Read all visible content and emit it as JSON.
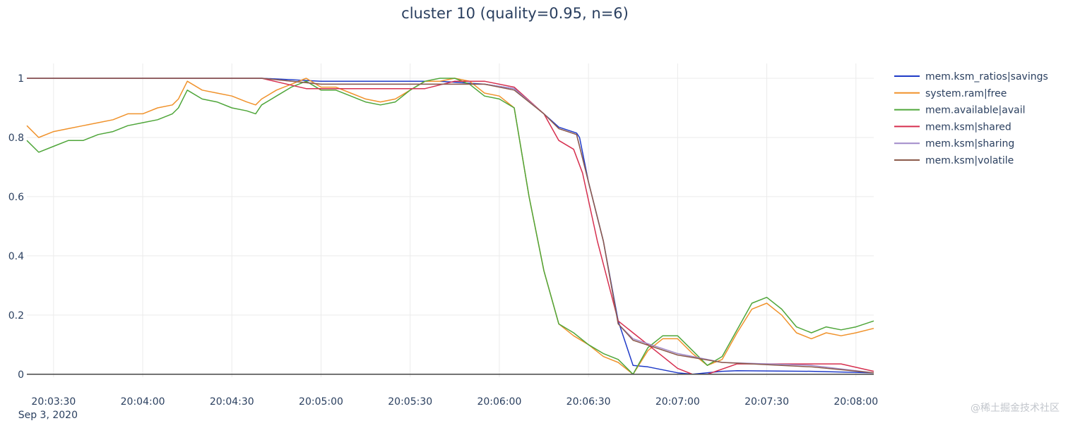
{
  "chart_data": {
    "type": "line",
    "title": "cluster 10 (quality=0.95, n=6)",
    "xlabel": "",
    "ylabel": "",
    "x_ticks": [
      "20:03:30",
      "20:04:00",
      "20:04:30",
      "20:05:00",
      "20:05:30",
      "20:06:00",
      "20:06:30",
      "20:07:00",
      "20:07:30",
      "20:08:00"
    ],
    "x_date_label": "Sep 3, 2020",
    "x_range": [
      "20:03:21",
      "20:08:06"
    ],
    "y_ticks": [
      0,
      0.2,
      0.4,
      0.6,
      0.8,
      1
    ],
    "y_tick_labels": [
      "0",
      "0.2",
      "0.4",
      "0.6",
      "0.8",
      "1"
    ],
    "ylim": [
      -0.01,
      1.05
    ],
    "grid": true,
    "legend_position": "top-right",
    "series": [
      {
        "name": "mem.ksm_ratios|savings",
        "color": "#1f3ac7",
        "points": [
          [
            "20:03:21",
            1
          ],
          [
            "20:04:40",
            1
          ],
          [
            "20:05:00",
            0.99
          ],
          [
            "20:05:40",
            0.99
          ],
          [
            "20:05:55",
            0.98
          ],
          [
            "20:06:05",
            0.965
          ],
          [
            "20:06:15",
            0.88
          ],
          [
            "20:06:20",
            0.835
          ],
          [
            "20:06:26",
            0.815
          ],
          [
            "20:06:27",
            0.8
          ],
          [
            "20:06:30",
            0.65
          ],
          [
            "20:06:35",
            0.45
          ],
          [
            "20:06:40",
            0.18
          ],
          [
            "20:06:45",
            0.03
          ],
          [
            "20:06:50",
            0.025
          ],
          [
            "20:07:00",
            0.005
          ],
          [
            "20:07:05",
            0
          ],
          [
            "20:07:15",
            0.01
          ],
          [
            "20:07:20",
            0.012
          ],
          [
            "20:07:45",
            0.01
          ],
          [
            "20:08:06",
            0.005
          ]
        ]
      },
      {
        "name": "system.ram|free",
        "color": "#f0922b",
        "points": [
          [
            "20:03:21",
            0.84
          ],
          [
            "20:03:25",
            0.8
          ],
          [
            "20:03:30",
            0.82
          ],
          [
            "20:03:35",
            0.83
          ],
          [
            "20:03:40",
            0.84
          ],
          [
            "20:03:45",
            0.85
          ],
          [
            "20:03:50",
            0.86
          ],
          [
            "20:03:55",
            0.88
          ],
          [
            "20:04:00",
            0.88
          ],
          [
            "20:04:05",
            0.9
          ],
          [
            "20:04:10",
            0.91
          ],
          [
            "20:04:12",
            0.93
          ],
          [
            "20:04:15",
            0.99
          ],
          [
            "20:04:20",
            0.96
          ],
          [
            "20:04:25",
            0.95
          ],
          [
            "20:04:30",
            0.94
          ],
          [
            "20:04:35",
            0.92
          ],
          [
            "20:04:38",
            0.91
          ],
          [
            "20:04:40",
            0.93
          ],
          [
            "20:04:45",
            0.96
          ],
          [
            "20:04:50",
            0.98
          ],
          [
            "20:04:55",
            1.0
          ],
          [
            "20:05:00",
            0.97
          ],
          [
            "20:05:05",
            0.97
          ],
          [
            "20:05:10",
            0.95
          ],
          [
            "20:05:15",
            0.93
          ],
          [
            "20:05:20",
            0.92
          ],
          [
            "20:05:25",
            0.93
          ],
          [
            "20:05:30",
            0.96
          ],
          [
            "20:05:35",
            0.99
          ],
          [
            "20:05:40",
            0.99
          ],
          [
            "20:05:45",
            1.0
          ],
          [
            "20:05:50",
            0.99
          ],
          [
            "20:05:55",
            0.95
          ],
          [
            "20:06:00",
            0.94
          ],
          [
            "20:06:05",
            0.9
          ],
          [
            "20:06:10",
            0.6
          ],
          [
            "20:06:15",
            0.35
          ],
          [
            "20:06:20",
            0.17
          ],
          [
            "20:06:25",
            0.13
          ],
          [
            "20:06:30",
            0.1
          ],
          [
            "20:06:35",
            0.06
          ],
          [
            "20:06:40",
            0.04
          ],
          [
            "20:06:45",
            0.0
          ],
          [
            "20:06:50",
            0.08
          ],
          [
            "20:06:55",
            0.12
          ],
          [
            "20:07:00",
            0.12
          ],
          [
            "20:07:05",
            0.07
          ],
          [
            "20:07:10",
            0.03
          ],
          [
            "20:07:15",
            0.05
          ],
          [
            "20:07:20",
            0.14
          ],
          [
            "20:07:25",
            0.22
          ],
          [
            "20:07:30",
            0.24
          ],
          [
            "20:07:35",
            0.2
          ],
          [
            "20:07:40",
            0.14
          ],
          [
            "20:07:45",
            0.12
          ],
          [
            "20:07:50",
            0.14
          ],
          [
            "20:07:55",
            0.13
          ],
          [
            "20:08:00",
            0.14
          ],
          [
            "20:08:06",
            0.155
          ]
        ]
      },
      {
        "name": "mem.available|avail",
        "color": "#4fa63a",
        "points": [
          [
            "20:03:21",
            0.79
          ],
          [
            "20:03:25",
            0.75
          ],
          [
            "20:03:30",
            0.77
          ],
          [
            "20:03:35",
            0.79
          ],
          [
            "20:03:40",
            0.79
          ],
          [
            "20:03:45",
            0.81
          ],
          [
            "20:03:50",
            0.82
          ],
          [
            "20:03:55",
            0.84
          ],
          [
            "20:04:00",
            0.85
          ],
          [
            "20:04:05",
            0.86
          ],
          [
            "20:04:10",
            0.88
          ],
          [
            "20:04:12",
            0.9
          ],
          [
            "20:04:15",
            0.96
          ],
          [
            "20:04:20",
            0.93
          ],
          [
            "20:04:25",
            0.92
          ],
          [
            "20:04:30",
            0.9
          ],
          [
            "20:04:35",
            0.89
          ],
          [
            "20:04:38",
            0.88
          ],
          [
            "20:04:40",
            0.91
          ],
          [
            "20:04:45",
            0.94
          ],
          [
            "20:04:50",
            0.97
          ],
          [
            "20:04:55",
            0.99
          ],
          [
            "20:05:00",
            0.96
          ],
          [
            "20:05:05",
            0.96
          ],
          [
            "20:05:10",
            0.94
          ],
          [
            "20:05:15",
            0.92
          ],
          [
            "20:05:20",
            0.91
          ],
          [
            "20:05:25",
            0.92
          ],
          [
            "20:05:30",
            0.96
          ],
          [
            "20:05:35",
            0.99
          ],
          [
            "20:05:40",
            1.0
          ],
          [
            "20:05:45",
            1.0
          ],
          [
            "20:05:50",
            0.98
          ],
          [
            "20:05:55",
            0.94
          ],
          [
            "20:06:00",
            0.93
          ],
          [
            "20:06:05",
            0.9
          ],
          [
            "20:06:10",
            0.6
          ],
          [
            "20:06:15",
            0.35
          ],
          [
            "20:06:20",
            0.17
          ],
          [
            "20:06:25",
            0.14
          ],
          [
            "20:06:30",
            0.1
          ],
          [
            "20:06:35",
            0.07
          ],
          [
            "20:06:40",
            0.05
          ],
          [
            "20:06:45",
            0.0
          ],
          [
            "20:06:50",
            0.09
          ],
          [
            "20:06:55",
            0.13
          ],
          [
            "20:07:00",
            0.13
          ],
          [
            "20:07:05",
            0.08
          ],
          [
            "20:07:10",
            0.03
          ],
          [
            "20:07:15",
            0.06
          ],
          [
            "20:07:20",
            0.15
          ],
          [
            "20:07:25",
            0.24
          ],
          [
            "20:07:30",
            0.26
          ],
          [
            "20:07:35",
            0.22
          ],
          [
            "20:07:40",
            0.16
          ],
          [
            "20:07:45",
            0.14
          ],
          [
            "20:07:50",
            0.16
          ],
          [
            "20:07:55",
            0.15
          ],
          [
            "20:08:00",
            0.16
          ],
          [
            "20:08:06",
            0.18
          ]
        ]
      },
      {
        "name": "mem.ksm|shared",
        "color": "#d62f4f",
        "points": [
          [
            "20:03:21",
            1
          ],
          [
            "20:04:40",
            1
          ],
          [
            "20:04:55",
            0.965
          ],
          [
            "20:05:35",
            0.965
          ],
          [
            "20:05:45",
            0.99
          ],
          [
            "20:05:55",
            0.99
          ],
          [
            "20:06:05",
            0.97
          ],
          [
            "20:06:15",
            0.88
          ],
          [
            "20:06:20",
            0.79
          ],
          [
            "20:06:25",
            0.76
          ],
          [
            "20:06:28",
            0.68
          ],
          [
            "20:06:33",
            0.45
          ],
          [
            "20:06:40",
            0.18
          ],
          [
            "20:06:45",
            0.14
          ],
          [
            "20:06:55",
            0.06
          ],
          [
            "20:07:00",
            0.02
          ],
          [
            "20:07:05",
            0.0
          ],
          [
            "20:07:10",
            0.0
          ],
          [
            "20:07:20",
            0.035
          ],
          [
            "20:07:30",
            0.035
          ],
          [
            "20:07:55",
            0.035
          ],
          [
            "20:08:06",
            0.01
          ]
        ]
      },
      {
        "name": "mem.ksm|sharing",
        "color": "#a08ac9",
        "points": [
          [
            "20:03:21",
            1
          ],
          [
            "20:04:40",
            1
          ],
          [
            "20:05:00",
            0.98
          ],
          [
            "20:05:55",
            0.98
          ],
          [
            "20:06:05",
            0.965
          ],
          [
            "20:06:15",
            0.88
          ],
          [
            "20:06:20",
            0.83
          ],
          [
            "20:06:26",
            0.81
          ],
          [
            "20:06:30",
            0.65
          ],
          [
            "20:06:35",
            0.45
          ],
          [
            "20:06:40",
            0.17
          ],
          [
            "20:06:45",
            0.12
          ],
          [
            "20:07:00",
            0.07
          ],
          [
            "20:07:15",
            0.04
          ],
          [
            "20:07:45",
            0.03
          ],
          [
            "20:08:06",
            0.005
          ]
        ]
      },
      {
        "name": "mem.ksm|volatile",
        "color": "#8b5a4b",
        "points": [
          [
            "20:03:21",
            1
          ],
          [
            "20:04:40",
            1
          ],
          [
            "20:05:00",
            0.98
          ],
          [
            "20:05:55",
            0.98
          ],
          [
            "20:06:05",
            0.96
          ],
          [
            "20:06:15",
            0.88
          ],
          [
            "20:06:20",
            0.83
          ],
          [
            "20:06:26",
            0.81
          ],
          [
            "20:06:30",
            0.65
          ],
          [
            "20:06:35",
            0.45
          ],
          [
            "20:06:40",
            0.17
          ],
          [
            "20:06:45",
            0.115
          ],
          [
            "20:07:00",
            0.065
          ],
          [
            "20:07:15",
            0.04
          ],
          [
            "20:07:45",
            0.025
          ],
          [
            "20:08:06",
            0.005
          ]
        ]
      }
    ]
  },
  "watermark": "@稀土掘金技术社区"
}
